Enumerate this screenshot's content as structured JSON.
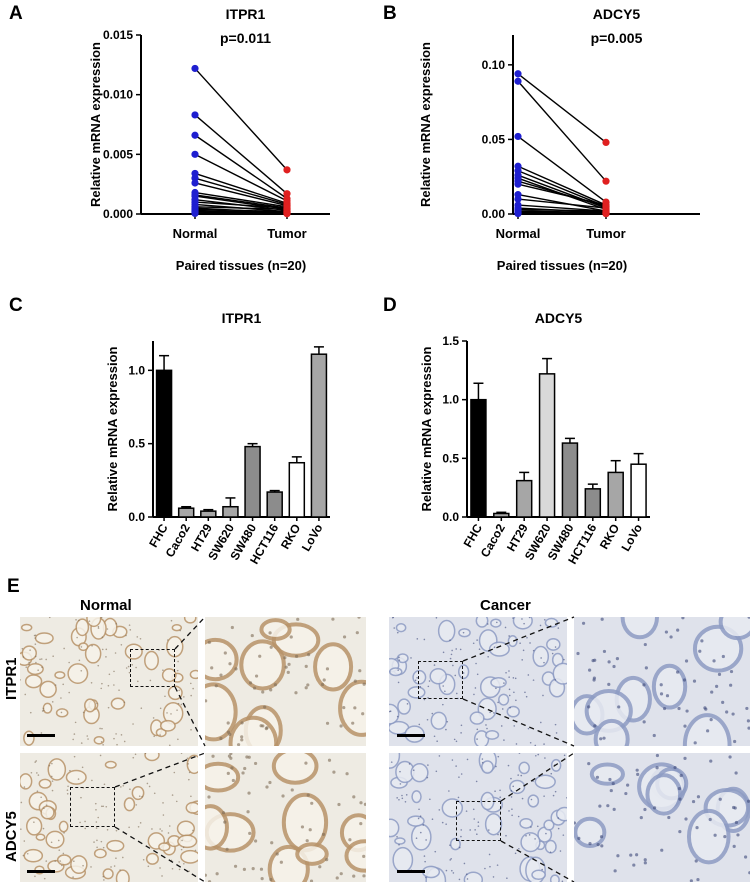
{
  "panel_letters": {
    "a": "A",
    "b": "B",
    "c": "C",
    "d": "D",
    "e": "E"
  },
  "chart_data": [
    {
      "id": "A",
      "type": "scatter",
      "subtype": "paired-before-after",
      "title": "ITPR1",
      "annotation": "p=0.011",
      "xlabel": "Paired tissues (n=20)",
      "ylabel": "Relative mRNA expression",
      "categories": [
        "Normal",
        "Tumor"
      ],
      "ylim": [
        0,
        0.015
      ],
      "yticks": [
        "0.000",
        "0.005",
        "0.010",
        "0.015"
      ],
      "colors": {
        "Normal": "#1f1fd0",
        "Tumor": "#e02020"
      },
      "pairs": [
        [
          0.0122,
          0.0037
        ],
        [
          0.0083,
          0.0017
        ],
        [
          0.0066,
          0.0013
        ],
        [
          0.005,
          0.0011
        ],
        [
          0.0034,
          0.0009
        ],
        [
          0.003,
          0.0008
        ],
        [
          0.0026,
          0.0007
        ],
        [
          0.0018,
          0.0006
        ],
        [
          0.0016,
          0.0005
        ],
        [
          0.0015,
          0.0004
        ],
        [
          0.0012,
          0.0003
        ],
        [
          0.001,
          0.0005
        ],
        [
          0.0008,
          0.0002
        ],
        [
          0.0006,
          0.0004
        ],
        [
          0.0005,
          0.0001
        ],
        [
          0.0004,
          0.0002
        ],
        [
          0.0003,
          0.0001
        ],
        [
          0.0002,
          0.0001
        ],
        [
          0.0001,
          5e-05
        ],
        [
          5e-05,
          2e-05
        ]
      ]
    },
    {
      "id": "B",
      "type": "scatter",
      "subtype": "paired-before-after",
      "title": "ADCY5",
      "annotation": "p=0.005",
      "xlabel": "Paired tissues (n=20)",
      "ylabel": "Relative mRNA expression",
      "categories": [
        "Normal",
        "Tumor"
      ],
      "ylim": [
        0,
        0.12
      ],
      "yticks": [
        "0.00",
        "0.05",
        "0.10"
      ],
      "colors": {
        "Normal": "#1f1fd0",
        "Tumor": "#e02020"
      },
      "pairs": [
        [
          0.094,
          0.048
        ],
        [
          0.089,
          0.022
        ],
        [
          0.052,
          0.008
        ],
        [
          0.032,
          0.006
        ],
        [
          0.029,
          0.005
        ],
        [
          0.026,
          0.004
        ],
        [
          0.024,
          0.003
        ],
        [
          0.022,
          0.005
        ],
        [
          0.02,
          0.006
        ],
        [
          0.013,
          0.002
        ],
        [
          0.01,
          0.004
        ],
        [
          0.006,
          0.002
        ],
        [
          0.004,
          0.001
        ],
        [
          0.003,
          0.002
        ],
        [
          0.002,
          0.001
        ],
        [
          0.002,
          0.0005
        ],
        [
          0.001,
          0.001
        ],
        [
          0.001,
          0.0005
        ],
        [
          0.0005,
          0.0003
        ],
        [
          0.0003,
          0.0002
        ]
      ]
    },
    {
      "id": "C",
      "type": "bar",
      "title": "ITPR1",
      "ylabel": "Relative mRNA expression",
      "categories": [
        "FHC",
        "Caco2",
        "HT29",
        "SW620",
        "SW480",
        "HCT116",
        "RKO",
        "LoVo"
      ],
      "values": [
        1.0,
        0.06,
        0.04,
        0.07,
        0.48,
        0.17,
        0.37,
        1.11
      ],
      "errors": [
        0.1,
        0.01,
        0.01,
        0.06,
        0.02,
        0.01,
        0.04,
        0.05
      ],
      "fills": [
        "#000000",
        "#a6a6a6",
        "#a6a6a6",
        "#a6a6a6",
        "#8c8c8c",
        "#8c8c8c",
        "#ffffff",
        "#a6a6a6"
      ],
      "ylim": [
        0,
        1.2
      ],
      "yticks": [
        "0.0",
        "0.5",
        "1.0"
      ]
    },
    {
      "id": "D",
      "type": "bar",
      "title": "ADCY5",
      "ylabel": "Relative mRNA expression",
      "categories": [
        "FHC",
        "Caco2",
        "HT29",
        "SW620",
        "SW480",
        "HCT116",
        "RKO",
        "LoVo"
      ],
      "values": [
        1.0,
        0.03,
        0.31,
        1.22,
        0.63,
        0.24,
        0.38,
        0.45
      ],
      "errors": [
        0.14,
        0.01,
        0.07,
        0.13,
        0.04,
        0.04,
        0.1,
        0.09
      ],
      "fills": [
        "#000000",
        "#a6a6a6",
        "#a6a6a6",
        "#d9d9d9",
        "#8c8c8c",
        "#8c8c8c",
        "#a6a6a6",
        "#ffffff"
      ],
      "ylim": [
        0,
        1.5
      ],
      "yticks": [
        "0.0",
        "0.5",
        "1.0",
        "1.5"
      ]
    }
  ],
  "histology": {
    "normal_label": "Normal",
    "cancer_label": "Cancer",
    "row_labels": [
      "ITPR1",
      "ADCY5"
    ],
    "colors": {
      "normal_bg": "#eeebe3",
      "normal_stain": "#b8946a",
      "cancer_bg": "#dfe2eb",
      "cancer_stain": "#8e9cc4"
    }
  }
}
